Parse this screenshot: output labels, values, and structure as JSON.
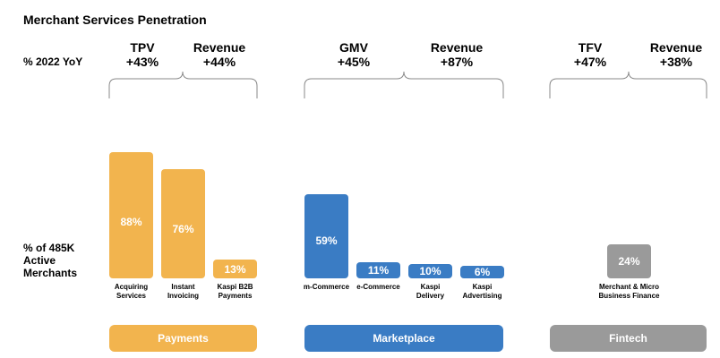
{
  "title": "Merchant Services Penetration",
  "labels": {
    "yoy": "% 2022 YoY",
    "active_line1": "% of 485K",
    "active_line2": "Active",
    "active_line3": "Merchants"
  },
  "metrics": {
    "payments": [
      {
        "name": "TPV",
        "value": "+43%"
      },
      {
        "name": "Revenue",
        "value": "+44%"
      }
    ],
    "marketplace": [
      {
        "name": "GMV",
        "value": "+45%"
      },
      {
        "name": "Revenue",
        "value": "+87%"
      }
    ],
    "fintech": [
      {
        "name": "TFV",
        "value": "+47%"
      },
      {
        "name": "Revenue",
        "value": "+38%"
      }
    ]
  },
  "colors": {
    "payments": "#f2b44e",
    "marketplace": "#3a7cc4",
    "fintech": "#9a9a9a",
    "bracket": "#888888"
  },
  "segments": {
    "payments": "Payments",
    "marketplace": "Marketplace",
    "fintech": "Fintech"
  },
  "chart_data": {
    "type": "bar",
    "unit": "%",
    "categories": [
      "Acquiring Services",
      "Instant Invoicing",
      "Kaspi B2B Payments",
      "m-Commerce",
      "e-Commerce",
      "Kaspi Delivery",
      "Kaspi Advertising",
      "Merchant & Micro Business Finance"
    ],
    "values": [
      88,
      76,
      13,
      59,
      11,
      10,
      6,
      24
    ],
    "value_labels": [
      "88%",
      "76%",
      "13%",
      "59%",
      "11%",
      "10%",
      "6%",
      "24%"
    ],
    "groups": [
      "Payments",
      "Payments",
      "Payments",
      "Marketplace",
      "Marketplace",
      "Marketplace",
      "Marketplace",
      "Fintech"
    ],
    "ylim": [
      0,
      100
    ]
  },
  "bar_labels": [
    [
      "Acquiring",
      "Services"
    ],
    [
      "Instant",
      "Invoicing"
    ],
    [
      "Kaspi B2B",
      "Payments"
    ],
    [
      "m-Commerce"
    ],
    [
      "e-Commerce"
    ],
    [
      "Kaspi",
      "Delivery"
    ],
    [
      "Kaspi",
      "Advertising"
    ],
    [
      "Merchant & Micro",
      "Business Finance"
    ]
  ]
}
